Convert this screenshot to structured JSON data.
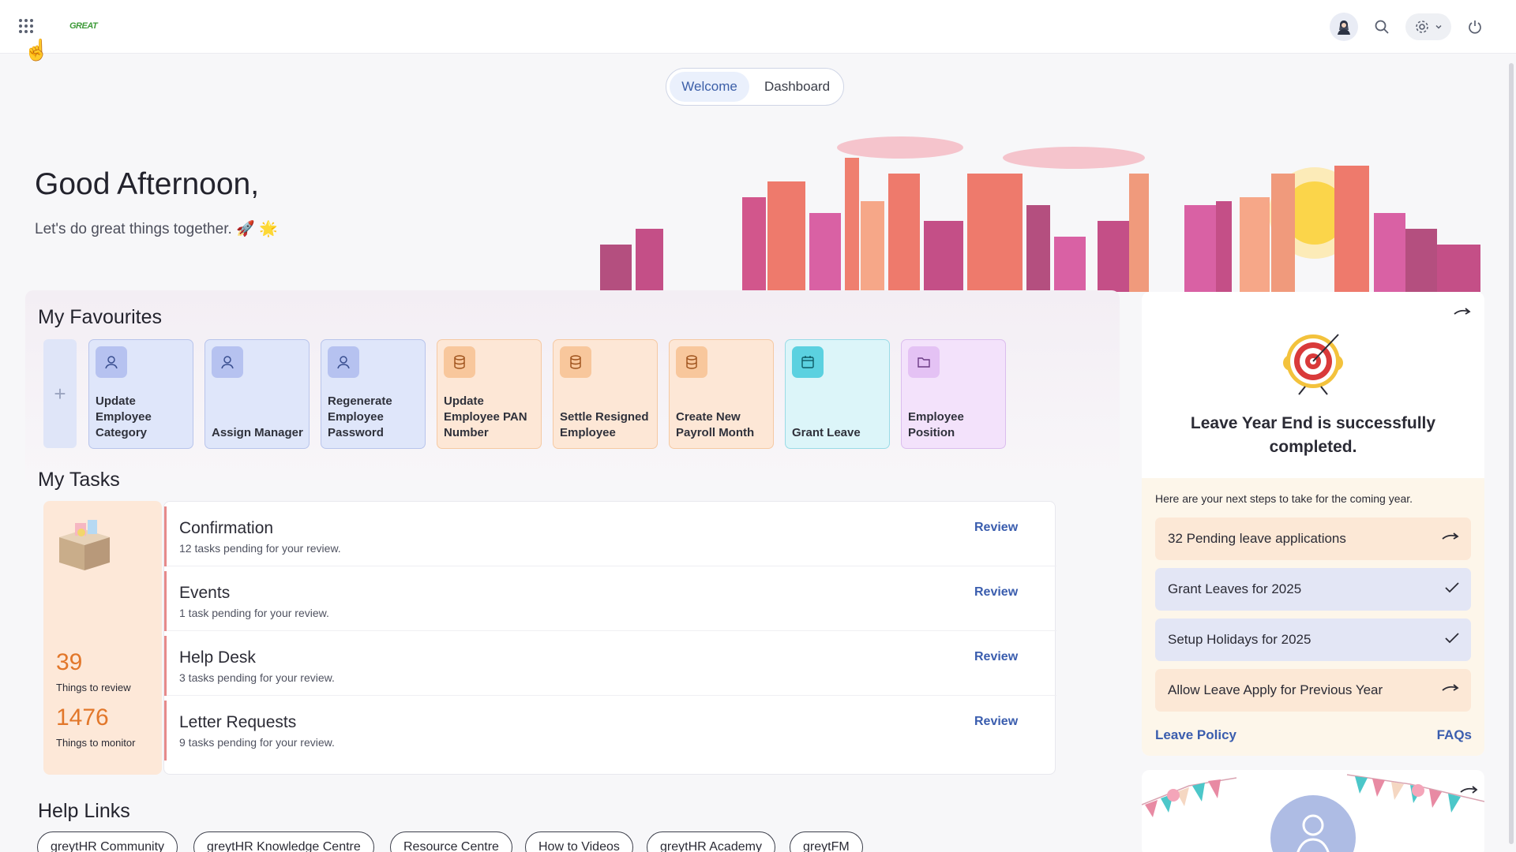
{
  "app": {
    "logo_text": "GREAT",
    "apps_icon": "grid-apps-icon",
    "accent_color": "#3a5dae"
  },
  "header": {
    "icons": [
      "avatar-icon",
      "search-icon",
      "gear-icon",
      "chevron-down-icon",
      "power-icon"
    ]
  },
  "tabs": [
    {
      "label": "Welcome",
      "active": true
    },
    {
      "label": "Dashboard",
      "active": false
    }
  ],
  "greeting": {
    "title": "Good Afternoon,",
    "subtitle": "Let's do great things together. 🚀 🌟"
  },
  "favourites": {
    "title": "My Favourites",
    "add_icon": "plus-icon",
    "items": [
      {
        "label": "Update Employee Category",
        "icon": "user-icon",
        "color": "#dfe6fa"
      },
      {
        "label": "Assign Manager",
        "icon": "user-icon",
        "color": "#dfe6fa"
      },
      {
        "label": "Regenerate Employee Password",
        "icon": "user-icon",
        "color": "#dfe6fa"
      },
      {
        "label": "Update Employee PAN Number",
        "icon": "database-icon",
        "color": "#fde7d6"
      },
      {
        "label": "Settle Resigned Employee",
        "icon": "database-icon",
        "color": "#fde7d6"
      },
      {
        "label": "Create New Payroll Month",
        "icon": "database-icon",
        "color": "#fde7d6"
      },
      {
        "label": "Grant Leave",
        "icon": "calendar-icon",
        "color": "#dcf5f9"
      },
      {
        "label": "Employee Position",
        "icon": "folder-icon",
        "color": "#f3e2fb"
      }
    ]
  },
  "tasks": {
    "title": "My Tasks",
    "review_count": "39",
    "review_label": "Things to review",
    "monitor_count": "1476",
    "monitor_label": "Things to monitor",
    "items": [
      {
        "name": "Confirmation",
        "desc": "12 tasks pending for your review.",
        "action": "Review"
      },
      {
        "name": "Events",
        "desc": "1 task pending for your review.",
        "action": "Review"
      },
      {
        "name": "Help Desk",
        "desc": "3 tasks pending for your review.",
        "action": "Review"
      },
      {
        "name": "Letter Requests",
        "desc": "9 tasks pending for your review.",
        "action": "Review"
      }
    ]
  },
  "help_links": {
    "title": "Help Links",
    "items": [
      "greytHR Community",
      "greytHR Knowledge Centre",
      "Resource Centre",
      "How to Videos",
      "greytHR Academy",
      "greytFM"
    ]
  },
  "leave_card": {
    "title": "Leave Year End is successfully completed.",
    "intro": "Here are your next steps to take for the coming year.",
    "steps": [
      {
        "label": "32 Pending leave applications",
        "status": "pending"
      },
      {
        "label": "Grant Leaves for 2025",
        "status": "done"
      },
      {
        "label": "Setup Holidays for 2025",
        "status": "done"
      },
      {
        "label": "Allow Leave Apply for Previous Year",
        "status": "pending"
      }
    ],
    "link_left": "Leave Policy",
    "link_right": "FAQs"
  }
}
